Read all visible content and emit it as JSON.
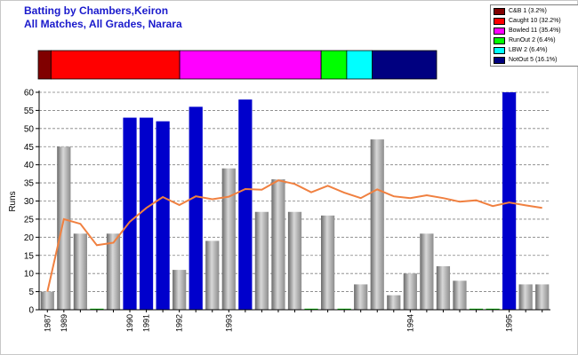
{
  "chart_data": {
    "type": "bar",
    "title": "Batting by Chambers,Keiron",
    "subtitle": "All Matches, All Grades, Narara",
    "ylabel": "Runs",
    "xlabel": "",
    "ylim": [
      0,
      60
    ],
    "yticks": [
      0,
      5,
      10,
      15,
      20,
      25,
      30,
      35,
      40,
      45,
      50,
      55,
      60
    ],
    "grid": true,
    "legend_position": "top-right",
    "innings": [
      {
        "runs": 5,
        "color": "#a0a0a0",
        "label": "1987"
      },
      {
        "runs": 45,
        "color": "#a0a0a0",
        "label": "1989"
      },
      {
        "runs": 21,
        "color": "#a0a0a0",
        "label": ""
      },
      {
        "runs": 0,
        "color": "#00cc00",
        "label": ""
      },
      {
        "runs": 21,
        "color": "#a0a0a0",
        "label": ""
      },
      {
        "runs": 53,
        "color": "#0000cc",
        "label": "1990"
      },
      {
        "runs": 53,
        "color": "#0000cc",
        "label": "1991"
      },
      {
        "runs": 52,
        "color": "#0000cc",
        "label": ""
      },
      {
        "runs": 11,
        "color": "#a0a0a0",
        "label": "1992"
      },
      {
        "runs": 56,
        "color": "#0000cc",
        "label": ""
      },
      {
        "runs": 19,
        "color": "#a0a0a0",
        "label": ""
      },
      {
        "runs": 39,
        "color": "#a0a0a0",
        "label": "1993"
      },
      {
        "runs": 58,
        "color": "#0000cc",
        "label": ""
      },
      {
        "runs": 27,
        "color": "#a0a0a0",
        "label": ""
      },
      {
        "runs": 36,
        "color": "#a0a0a0",
        "label": ""
      },
      {
        "runs": 27,
        "color": "#a0a0a0",
        "label": ""
      },
      {
        "runs": 0,
        "color": "#00cc00",
        "label": ""
      },
      {
        "runs": 26,
        "color": "#a0a0a0",
        "label": ""
      },
      {
        "runs": 0,
        "color": "#00cc00",
        "label": ""
      },
      {
        "runs": 7,
        "color": "#a0a0a0",
        "label": ""
      },
      {
        "runs": 47,
        "color": "#a0a0a0",
        "label": ""
      },
      {
        "runs": 4,
        "color": "#a0a0a0",
        "label": ""
      },
      {
        "runs": 10,
        "color": "#a0a0a0",
        "label": "1994"
      },
      {
        "runs": 21,
        "color": "#a0a0a0",
        "label": ""
      },
      {
        "runs": 12,
        "color": "#a0a0a0",
        "label": ""
      },
      {
        "runs": 8,
        "color": "#a0a0a0",
        "label": ""
      },
      {
        "runs": 0,
        "color": "#00cc00",
        "label": ""
      },
      {
        "runs": 0,
        "color": "#00cc00",
        "label": ""
      },
      {
        "runs": 60,
        "color": "#0000cc",
        "label": "1995"
      },
      {
        "runs": 7,
        "color": "#a0a0a0",
        "label": ""
      },
      {
        "runs": 7,
        "color": "#a0a0a0",
        "label": ""
      }
    ],
    "line_series": {
      "color": "#f08040",
      "values": [
        5,
        25,
        23.7,
        17.8,
        18.5,
        24.3,
        28.1,
        31.1,
        28.9,
        31.3,
        30.5,
        31.2,
        33.3,
        33.1,
        35.7,
        34.7,
        32.4,
        34.2,
        32.3,
        30.8,
        33.2,
        31.3,
        30.8,
        31.6,
        30.8,
        29.8,
        30.2,
        28.6,
        29.6,
        28.8,
        28.1
      ]
    },
    "dismissal_bar": [
      {
        "label": "C&B 1 (3.2%)",
        "percent": 3.2,
        "color": "#800000"
      },
      {
        "label": "Caught 10 (32.2%)",
        "percent": 32.2,
        "color": "#ff0000"
      },
      {
        "label": "Bowled 11 (35.4%)",
        "percent": 35.4,
        "color": "#ff00ff"
      },
      {
        "label": "RunOut 2 (6.4%)",
        "percent": 6.4,
        "color": "#00ff00"
      },
      {
        "label": "LBW 2 (6.4%)",
        "percent": 6.4,
        "color": "#00ffff"
      },
      {
        "label": "NotOut 5 (16.1%)",
        "percent": 16.1,
        "color": "#000080"
      }
    ]
  }
}
